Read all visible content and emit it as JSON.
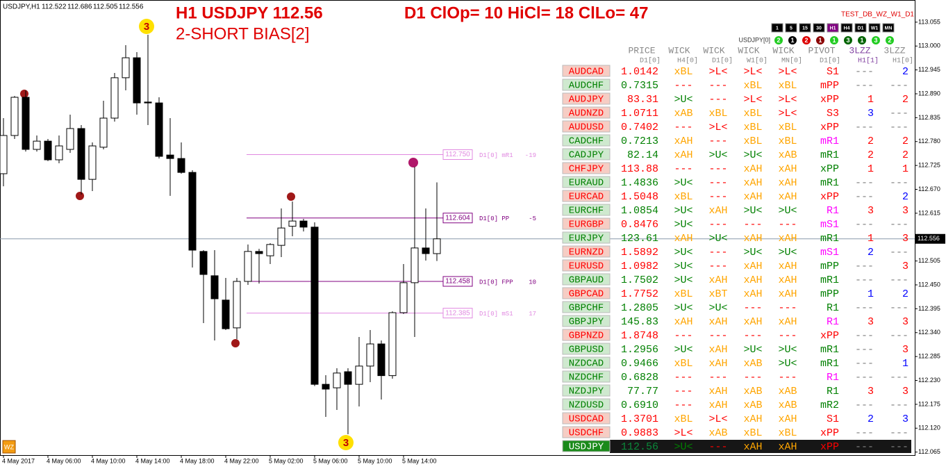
{
  "header": {
    "symbol_info": "USDJPY,H1",
    "ohlc": [
      "112.522",
      "112.686",
      "112.505",
      "112.556"
    ],
    "title": "H1 USDJPY 112.56",
    "bias": "2-SHORT BIAS[2]",
    "d1_stats": "D1 ClOp= 10 HiCl= 18 ClLo= 47",
    "indicator_name": "TEST_DB_WZ_W1_D1",
    "logo": "WZ"
  },
  "chart_data": {
    "type": "candlestick",
    "categories": [
      "4 May 2017",
      null,
      null,
      null,
      "4 May 06:00",
      null,
      null,
      null,
      "4 May 10:00",
      null,
      null,
      null,
      "4 May 14:00",
      null,
      null,
      null,
      "4 May 18:00",
      null,
      null,
      null,
      "4 May 22:00",
      null,
      null,
      null,
      "5 May 02:00",
      null,
      null,
      null,
      "5 May 06:00",
      null,
      null,
      null,
      "5 May 10:00",
      null,
      null,
      null,
      "5 May 14:00",
      null,
      null,
      null
    ],
    "open": [
      112.706,
      112.794,
      112.882,
      112.762,
      112.781,
      112.738,
      112.762,
      112.81,
      112.693,
      112.767,
      112.834,
      112.927,
      112.973,
      112.871,
      112.869,
      112.749,
      112.741,
      112.709,
      112.527,
      112.471,
      112.415,
      112.351,
      112.458,
      112.527,
      112.517,
      112.541,
      112.585,
      112.597,
      112.583,
      112.221,
      112.213,
      112.25,
      112.221,
      112.263,
      112.314,
      112.241,
      112.386,
      112.455,
      112.535,
      112.522
    ],
    "high": [
      112.834,
      112.885,
      112.898,
      112.794,
      112.786,
      112.794,
      112.842,
      112.818,
      112.778,
      112.874,
      112.938,
      113.002,
      112.986,
      113.026,
      112.882,
      112.834,
      112.778,
      112.714,
      112.53,
      112.53,
      112.466,
      112.466,
      112.543,
      112.533,
      112.546,
      112.626,
      112.642,
      112.602,
      112.594,
      112.242,
      112.258,
      112.258,
      112.33,
      112.346,
      112.322,
      112.389,
      112.498,
      112.722,
      112.626,
      112.686
    ],
    "low": [
      112.677,
      112.786,
      112.757,
      112.757,
      112.735,
      112.73,
      112.754,
      112.658,
      112.666,
      112.762,
      112.826,
      112.898,
      112.842,
      112.818,
      112.741,
      112.655,
      112.706,
      112.49,
      112.362,
      112.322,
      112.346,
      112.325,
      112.45,
      112.453,
      112.498,
      112.514,
      112.562,
      112.573,
      112.217,
      112.146,
      112.162,
      112.106,
      112.17,
      112.226,
      112.186,
      112.234,
      112.383,
      112.33,
      112.506,
      112.505
    ],
    "close": [
      112.794,
      112.882,
      112.762,
      112.781,
      112.738,
      112.77,
      112.81,
      112.693,
      112.77,
      112.834,
      112.927,
      112.973,
      112.869,
      112.869,
      112.746,
      112.741,
      112.709,
      112.53,
      112.474,
      112.418,
      112.349,
      112.458,
      112.527,
      112.522,
      112.543,
      112.581,
      112.597,
      112.583,
      112.221,
      112.21,
      112.247,
      112.221,
      112.263,
      112.314,
      112.241,
      112.386,
      112.455,
      112.535,
      112.522,
      112.556
    ],
    "ylim": [
      112.058,
      113.106
    ],
    "yticks": [
      113.055,
      {
        "value": 113.0,
        "label": "113.000"
      },
      112.945,
      {
        "value": 112.89,
        "label": "112.890"
      },
      112.835,
      {
        "value": 112.78,
        "label": "112.780"
      },
      112.725,
      {
        "value": 112.67,
        "label": "112.670"
      },
      112.615,
      112.505,
      {
        "value": 112.45,
        "label": "112.450"
      },
      112.395,
      {
        "value": 112.34,
        "label": "112.340"
      },
      112.285,
      {
        "value": 112.23,
        "label": "112.230"
      },
      112.175,
      {
        "value": 112.12,
        "label": "112.120"
      },
      112.065
    ],
    "current_price": 112.556,
    "levels": [
      {
        "price": {
          "value": 112.75,
          "label": "112.750"
        },
        "name": "D1[0] mR1",
        "offset": -19,
        "color": "#e088e0"
      },
      {
        "price": 112.604,
        "name": "D1[0] PP",
        "offset": -5,
        "color": "#800080"
      },
      {
        "price": 112.458,
        "name": "D1[0] FPP",
        "offset": 10,
        "color": "#800080"
      },
      {
        "price": 112.385,
        "name": "D1[0] mS1",
        "offset": 17,
        "color": "#e088e0"
      }
    ],
    "wave_labels": [
      "3",
      "3"
    ]
  },
  "panel": {
    "timeframes": [
      "1",
      "5",
      "15",
      "30",
      "H1",
      "H4",
      "D1",
      "W1",
      "MN"
    ],
    "active_timeframe": 4,
    "status_symbol": "USDJPY[0]",
    "status": [
      {
        "value": 2,
        "color": "#22cc22"
      },
      {
        "value": 1,
        "color": "#000000"
      },
      {
        "value": 2,
        "color": "#dd0000"
      },
      {
        "value": 1,
        "color": "#8b0000"
      },
      {
        "value": 1,
        "color": "#22cc22"
      },
      {
        "value": 3,
        "color": "#006400"
      },
      {
        "value": 1,
        "color": "#006400"
      },
      {
        "value": 3,
        "color": "#22cc22"
      },
      {
        "value": 2,
        "color": "#22cc22"
      }
    ]
  },
  "table": {
    "columns": [
      {
        "title": "PRICE",
        "timeframe": "D1[0]",
        "color": "gray"
      },
      {
        "title": "WICK",
        "timeframe": "H4[0]",
        "color": "gray"
      },
      {
        "title": "WICK",
        "timeframe": "D1[0]",
        "color": "gray"
      },
      {
        "title": "WICK",
        "timeframe": "W1[0]",
        "color": "gray"
      },
      {
        "title": "WICK",
        "timeframe": "MN[0]",
        "color": "gray"
      },
      {
        "title": "PIVOT",
        "timeframe": "D1[0]",
        "color": "gray"
      },
      {
        "title": "3LZZ",
        "timeframe": "H1[1]",
        "color": "purple"
      },
      {
        "title": "3LZZ",
        "timeframe": "H1[0]",
        "color": "gray"
      }
    ],
    "selected_row": 27,
    "rows": [
      {
        "symbol": "AUDCAD",
        "cells": [
          "1.0142",
          "xBL",
          ">L<",
          ">L<",
          ">L<",
          "S1",
          "---",
          "2"
        ],
        "colors": [
          "red",
          "orange",
          "red",
          "red",
          "red",
          "red",
          "gray",
          "blue"
        ]
      },
      {
        "symbol": "AUDCHF",
        "cells": [
          "0.7315",
          "---",
          "---",
          "xBL",
          "xBL",
          "mPP",
          "---",
          "---"
        ],
        "colors": [
          "green",
          "red",
          "red",
          "orange",
          "orange",
          "red",
          "gray",
          "gray"
        ]
      },
      {
        "symbol": "AUDJPY",
        "cells": [
          "83.31",
          ">U<",
          "---",
          ">L<",
          ">L<",
          "xPP",
          "1",
          "2"
        ],
        "colors": [
          "red",
          "green",
          "red",
          "red",
          "red",
          "red",
          "red",
          "red"
        ]
      },
      {
        "symbol": "AUDNZD",
        "cells": [
          "1.0711",
          "xAB",
          "xBL",
          "xBL",
          ">L<",
          "S3",
          "3",
          "---"
        ],
        "colors": [
          "red",
          "orange",
          "orange",
          "orange",
          "red",
          "red",
          "blue",
          "gray"
        ]
      },
      {
        "symbol": "AUDUSD",
        "cells": [
          "0.7402",
          "---",
          ">L<",
          "xBL",
          "xBL",
          "xPP",
          "---",
          "---"
        ],
        "colors": [
          "red",
          "red",
          "red",
          "orange",
          "orange",
          "red",
          "gray",
          "gray"
        ]
      },
      {
        "symbol": "CADCHF",
        "cells": [
          "0.7213",
          "xAH",
          "---",
          "xBL",
          "xBL",
          "mR1",
          "2",
          "2"
        ],
        "colors": [
          "green",
          "orange",
          "red",
          "orange",
          "orange",
          "magenta",
          "red",
          "red"
        ]
      },
      {
        "symbol": "CADJPY",
        "cells": [
          "82.14",
          "xAH",
          ">U<",
          ">U<",
          "xAB",
          "mR1",
          "2",
          "2"
        ],
        "colors": [
          "green",
          "orange",
          "green",
          "green",
          "orange",
          "green",
          "red",
          "red"
        ]
      },
      {
        "symbol": "CHFJPY",
        "cells": [
          "113.88",
          "---",
          "---",
          "xAH",
          "xAH",
          "xPP",
          "1",
          "1"
        ],
        "colors": [
          "red",
          "red",
          "red",
          "orange",
          "orange",
          "green",
          "red",
          "red"
        ]
      },
      {
        "symbol": "EURAUD",
        "cells": [
          "1.4836",
          ">U<",
          "---",
          "xAH",
          "xAH",
          "mR1",
          "---",
          "---"
        ],
        "colors": [
          "green",
          "green",
          "red",
          "orange",
          "orange",
          "green",
          "gray",
          "gray"
        ]
      },
      {
        "symbol": "EURCAD",
        "cells": [
          "1.5048",
          "xBL",
          "---",
          "xAH",
          "xAH",
          "xPP",
          "---",
          "2"
        ],
        "colors": [
          "red",
          "orange",
          "red",
          "orange",
          "orange",
          "red",
          "gray",
          "blue"
        ]
      },
      {
        "symbol": "EURCHF",
        "cells": [
          "1.0854",
          ">U<",
          "xAH",
          ">U<",
          ">U<",
          "R1",
          "3",
          "3"
        ],
        "colors": [
          "green",
          "green",
          "orange",
          "green",
          "green",
          "magenta",
          "red",
          "red"
        ]
      },
      {
        "symbol": "EURGBP",
        "cells": [
          "0.8476",
          ">U<",
          "---",
          "---",
          "---",
          "mS1",
          "---",
          "---"
        ],
        "colors": [
          "red",
          "green",
          "red",
          "red",
          "red",
          "magenta",
          "gray",
          "gray"
        ]
      },
      {
        "symbol": "EURJPY",
        "cells": [
          "123.61",
          "xAH",
          ">U<",
          "xAH",
          "xAH",
          "mR1",
          "1",
          "3"
        ],
        "colors": [
          "green",
          "orange",
          "green",
          "orange",
          "orange",
          "green",
          "red",
          "red"
        ]
      },
      {
        "symbol": "EURNZD",
        "cells": [
          "1.5892",
          ">U<",
          "---",
          ">U<",
          ">U<",
          "mS1",
          "2",
          "---"
        ],
        "colors": [
          "red",
          "green",
          "red",
          "green",
          "green",
          "magenta",
          "blue",
          "gray"
        ]
      },
      {
        "symbol": "EURUSD",
        "cells": [
          "1.0982",
          ">U<",
          "---",
          "xAH",
          "xAH",
          "mPP",
          "---",
          "3"
        ],
        "colors": [
          "red",
          "green",
          "red",
          "orange",
          "orange",
          "green",
          "gray",
          "red"
        ]
      },
      {
        "symbol": "GBPAUD",
        "cells": [
          "1.7502",
          ">U<",
          "xAH",
          "xAH",
          "xAH",
          "mR1",
          "---",
          "---"
        ],
        "colors": [
          "green",
          "green",
          "orange",
          "orange",
          "orange",
          "green",
          "gray",
          "gray"
        ]
      },
      {
        "symbol": "GBPCAD",
        "cells": [
          "1.7752",
          "xBL",
          "xBT",
          "xAH",
          "xAH",
          "mPP",
          "1",
          "2"
        ],
        "colors": [
          "red",
          "orange",
          "orange",
          "orange",
          "orange",
          "green",
          "blue",
          "blue"
        ]
      },
      {
        "symbol": "GBPCHF",
        "cells": [
          "1.2805",
          ">U<",
          ">U<",
          "---",
          "---",
          "R1",
          "---",
          "---"
        ],
        "colors": [
          "green",
          "green",
          "green",
          "red",
          "red",
          "green",
          "gray",
          "gray"
        ]
      },
      {
        "symbol": "GBPJPY",
        "cells": [
          "145.83",
          "xAH",
          "xAH",
          "xAH",
          "xAH",
          "R1",
          "3",
          "3"
        ],
        "colors": [
          "green",
          "orange",
          "orange",
          "orange",
          "orange",
          "magenta",
          "red",
          "red"
        ]
      },
      {
        "symbol": "GBPNZD",
        "cells": [
          "1.8748",
          "---",
          "---",
          "---",
          "---",
          "xPP",
          "---",
          "---"
        ],
        "colors": [
          "red",
          "red",
          "red",
          "red",
          "red",
          "red",
          "gray",
          "gray"
        ]
      },
      {
        "symbol": "GBPUSD",
        "cells": [
          "1.2956",
          ">U<",
          "xAH",
          ">U<",
          ">U<",
          "mR1",
          "---",
          "3"
        ],
        "colors": [
          "green",
          "green",
          "orange",
          "green",
          "green",
          "green",
          "gray",
          "red"
        ]
      },
      {
        "symbol": "NZDCAD",
        "cells": [
          "0.9466",
          "xBL",
          "xAH",
          "xAB",
          ">U<",
          "mR1",
          "---",
          "1"
        ],
        "colors": [
          "green",
          "orange",
          "orange",
          "orange",
          "green",
          "green",
          "gray",
          "blue"
        ]
      },
      {
        "symbol": "NZDCHF",
        "cells": [
          "0.6828",
          "---",
          "---",
          "---",
          "---",
          "R1",
          "---",
          "---"
        ],
        "colors": [
          "green",
          "red",
          "red",
          "red",
          "red",
          "magenta",
          "gray",
          "gray"
        ]
      },
      {
        "symbol": "NZDJPY",
        "cells": [
          "77.77",
          "---",
          "xAH",
          "xAB",
          "xAB",
          "R1",
          "3",
          "3"
        ],
        "colors": [
          "green",
          "red",
          "orange",
          "orange",
          "orange",
          "green",
          "red",
          "red"
        ]
      },
      {
        "symbol": "NZDUSD",
        "cells": [
          "0.6910",
          "---",
          "xAH",
          "xAB",
          "xAB",
          "mR2",
          "---",
          "---"
        ],
        "colors": [
          "green",
          "red",
          "orange",
          "orange",
          "orange",
          "green",
          "gray",
          "gray"
        ]
      },
      {
        "symbol": "USDCAD",
        "cells": [
          "1.3701",
          "xBL",
          ">L<",
          "xAH",
          "xAH",
          "S1",
          "2",
          "3"
        ],
        "colors": [
          "red",
          "orange",
          "red",
          "orange",
          "orange",
          "red",
          "blue",
          "blue"
        ]
      },
      {
        "symbol": "USDCHF",
        "cells": [
          "0.9883",
          ">L<",
          "xAB",
          "xBL",
          "xBL",
          "xPP",
          "---",
          "---"
        ],
        "colors": [
          "red",
          "red",
          "orange",
          "orange",
          "orange",
          "red",
          "gray",
          "gray"
        ]
      },
      {
        "symbol": "USDJPY",
        "cells": [
          "112.56",
          ">U<",
          "---",
          "xAH",
          "xAH",
          "xPP",
          "---",
          "---"
        ],
        "colors": [
          "#0a8a3a",
          "green",
          "red",
          "orange",
          "orange",
          "red",
          "gray",
          "gray"
        ]
      }
    ]
  }
}
